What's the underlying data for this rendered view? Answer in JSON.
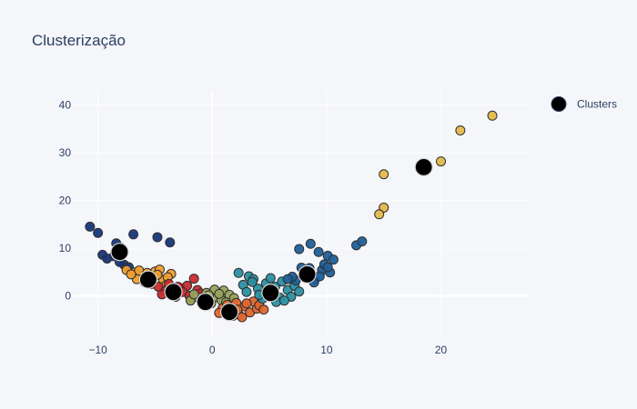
{
  "chart_data": {
    "type": "scatter",
    "title": "Clusterização",
    "xlabel": "",
    "ylabel": "",
    "xlim": [
      -12.2,
      27.6
    ],
    "ylim": [
      -8.5,
      43.0
    ],
    "x_ticks": [
      -10,
      0,
      10,
      20
    ],
    "y_ticks": [
      0,
      10,
      20,
      30,
      40
    ],
    "grid": true,
    "legend": {
      "position": "top-right",
      "entries": [
        "Clusters"
      ]
    },
    "colors": {
      "background": "#f5f6fa",
      "grid": "#ffffff",
      "text": "#2a3f5f",
      "centroid": "#000000"
    },
    "series": [
      {
        "color": "#16367a",
        "points": [
          [
            -10.7,
            14.5
          ],
          [
            -10.0,
            13.2
          ],
          [
            -6.9,
            12.9
          ],
          [
            -4.8,
            12.3
          ],
          [
            -3.7,
            11.2
          ],
          [
            -9.6,
            8.6
          ],
          [
            -9.2,
            7.8
          ],
          [
            -8.4,
            11.0
          ],
          [
            -8.0,
            10.1
          ],
          [
            -8.6,
            8.3
          ],
          [
            -7.7,
            6.5
          ],
          [
            -7.3,
            6.0
          ],
          [
            -8.1,
            7.1
          ]
        ]
      },
      {
        "color": "#ef9f2e",
        "points": [
          [
            -7.5,
            5.4
          ],
          [
            -6.8,
            4.9
          ],
          [
            -6.2,
            4.2
          ],
          [
            -5.5,
            3.7
          ],
          [
            -5.0,
            5.1
          ],
          [
            -4.6,
            5.5
          ],
          [
            -3.6,
            4.6
          ],
          [
            -6.6,
            3.5
          ],
          [
            -5.9,
            2.8
          ],
          [
            -4.3,
            3.4
          ],
          [
            -4.8,
            4.4
          ],
          [
            -7.1,
            4.5
          ],
          [
            -6.4,
            5.3
          ],
          [
            -5.3,
            2.5
          ],
          [
            -4.1,
            2.1
          ],
          [
            -5.7,
            4.8
          ],
          [
            -3.9,
            3.9
          ]
        ]
      },
      {
        "color": "#c92a2e",
        "points": [
          [
            -4.7,
            1.9
          ],
          [
            -4.1,
            1.0
          ],
          [
            -3.5,
            0.4
          ],
          [
            -2.8,
            1.6
          ],
          [
            -1.6,
            3.6
          ],
          [
            -2.2,
            2.1
          ],
          [
            -3.2,
            -0.2
          ],
          [
            -1.9,
            -0.6
          ],
          [
            -1.3,
            1.2
          ],
          [
            -2.6,
            0.8
          ],
          [
            -4.4,
            0.3
          ],
          [
            -3.8,
            2.5
          ],
          [
            -2.0,
            0.0
          ],
          [
            -1.0,
            0.5
          ],
          [
            -3.0,
            1.9
          ]
        ]
      },
      {
        "color": "#9aa35a",
        "points": [
          [
            -1.9,
            -1.0
          ],
          [
            -1.2,
            -0.4
          ],
          [
            -0.5,
            0.6
          ],
          [
            0.3,
            -0.3
          ],
          [
            1.0,
            1.1
          ],
          [
            1.5,
            0.2
          ],
          [
            -0.1,
            -1.6
          ],
          [
            0.8,
            -0.9
          ],
          [
            -1.6,
            0.3
          ],
          [
            0.2,
            1.3
          ],
          [
            -0.8,
            -1.8
          ],
          [
            1.9,
            -0.5
          ],
          [
            0.6,
            0.4
          ],
          [
            -0.3,
            0.1
          ],
          [
            1.2,
            -1.4
          ]
        ]
      },
      {
        "color": "#e0652c",
        "points": [
          [
            0.9,
            -2.6
          ],
          [
            1.6,
            -3.1
          ],
          [
            2.3,
            -3.9
          ],
          [
            2.8,
            -2.2
          ],
          [
            3.3,
            -3.5
          ],
          [
            2.1,
            -1.5
          ],
          [
            3.9,
            -2.7
          ],
          [
            1.3,
            -1.9
          ],
          [
            2.6,
            -4.5
          ],
          [
            3.6,
            -1.2
          ],
          [
            4.1,
            -2.0
          ],
          [
            0.6,
            -3.6
          ],
          [
            2.2,
            -2.9
          ],
          [
            3.0,
            -1.6
          ],
          [
            1.8,
            -4.2
          ],
          [
            4.5,
            -2.9
          ]
        ]
      },
      {
        "color": "#2a8fa1",
        "points": [
          [
            2.3,
            4.8
          ],
          [
            3.2,
            4.1
          ],
          [
            3.6,
            3.5
          ],
          [
            2.7,
            2.3
          ],
          [
            4.0,
            1.5
          ],
          [
            4.7,
            2.6
          ],
          [
            5.5,
            1.9
          ],
          [
            6.1,
            3.0
          ],
          [
            3.0,
            0.8
          ],
          [
            4.4,
            -0.6
          ],
          [
            5.9,
            -0.4
          ],
          [
            6.6,
            1.2
          ],
          [
            7.2,
            2.1
          ],
          [
            5.1,
            3.7
          ],
          [
            6.9,
            -0.2
          ],
          [
            4.1,
            0.2
          ],
          [
            5.6,
            -1.3
          ],
          [
            3.5,
            2.9
          ],
          [
            7.6,
            0.9
          ],
          [
            6.3,
            -1.0
          ]
        ]
      },
      {
        "color": "#1f5f9a",
        "points": [
          [
            7.6,
            9.8
          ],
          [
            8.6,
            10.9
          ],
          [
            9.3,
            9.2
          ],
          [
            10.1,
            8.4
          ],
          [
            10.6,
            7.6
          ],
          [
            12.6,
            10.6
          ],
          [
            13.1,
            11.4
          ],
          [
            7.8,
            5.9
          ],
          [
            8.2,
            4.5
          ],
          [
            9.0,
            3.5
          ],
          [
            9.6,
            5.4
          ],
          [
            10.3,
            4.9
          ],
          [
            8.9,
            2.8
          ],
          [
            7.3,
            3.2
          ],
          [
            9.8,
            6.6
          ],
          [
            8.5,
            5.8
          ],
          [
            10.1,
            6.0
          ],
          [
            7.0,
            4.0
          ],
          [
            9.4,
            4.1
          ],
          [
            6.6,
            3.5
          ]
        ]
      },
      {
        "color": "#e3b84a",
        "points": [
          [
            24.5,
            37.8
          ],
          [
            21.7,
            34.7
          ],
          [
            20.0,
            28.2
          ],
          [
            15.0,
            25.5
          ],
          [
            15.0,
            18.5
          ],
          [
            14.6,
            17.1
          ]
        ]
      }
    ],
    "centroids": [
      [
        -8.1,
        9.2
      ],
      [
        -5.6,
        3.4
      ],
      [
        -3.4,
        0.8
      ],
      [
        -0.6,
        -1.3
      ],
      [
        1.5,
        -3.4
      ],
      [
        5.1,
        0.6
      ],
      [
        8.3,
        4.5
      ],
      [
        18.5,
        27.0
      ]
    ]
  }
}
